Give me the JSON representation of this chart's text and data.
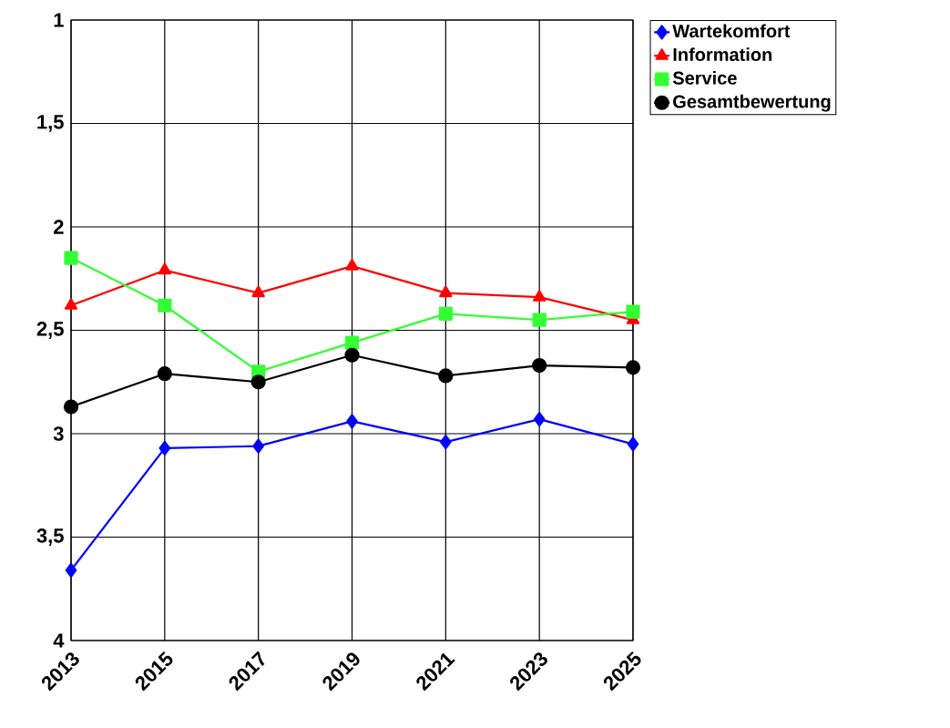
{
  "chart_data": {
    "type": "line",
    "categories": [
      "2013",
      "2015",
      "2017",
      "2019",
      "2021",
      "2023",
      "2025"
    ],
    "series": [
      {
        "name": "Wartekomfort",
        "color": "#0000ff",
        "marker": "diamond",
        "values": [
          3.66,
          3.07,
          3.06,
          2.94,
          3.04,
          2.93,
          3.05
        ]
      },
      {
        "name": "Information",
        "color": "#ff0000",
        "marker": "triangle",
        "values": [
          2.38,
          2.21,
          2.32,
          2.19,
          2.32,
          2.34,
          2.45
        ]
      },
      {
        "name": "Service",
        "color": "#33ff33",
        "marker": "square",
        "values": [
          2.15,
          2.38,
          2.7,
          2.56,
          2.42,
          2.45,
          2.41
        ]
      },
      {
        "name": "Gesamtbewertung",
        "color": "#000000",
        "marker": "circle",
        "values": [
          2.87,
          2.71,
          2.75,
          2.62,
          2.72,
          2.67,
          2.68
        ]
      }
    ],
    "ylim": [
      4,
      1
    ],
    "yticks": [
      1,
      {
        "value": 1.5,
        "label": "1,5"
      },
      2,
      {
        "value": 2.5,
        "label": "2,5"
      },
      3,
      {
        "value": 3.5,
        "label": "3,5"
      },
      4
    ],
    "grid": true,
    "legend": "top right",
    "line_style": "solid"
  }
}
